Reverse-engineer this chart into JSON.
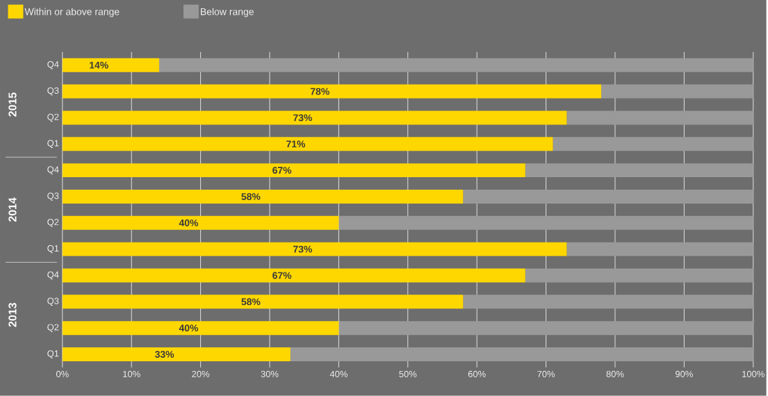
{
  "chart_data": {
    "type": "bar",
    "orientation": "horizontal",
    "stacked": true,
    "categories": [
      "Q4",
      "Q3",
      "Q2",
      "Q1",
      "Q4",
      "Q3",
      "Q2",
      "Q1",
      "Q4",
      "Q3",
      "Q2",
      "Q1"
    ],
    "series": [
      {
        "name": "Within or above range",
        "color": "#ffd700",
        "values": [
          14,
          78,
          73,
          71,
          67,
          58,
          40,
          73,
          67,
          58,
          40,
          33
        ],
        "value_labels": [
          "14%",
          "78%",
          "73%",
          "71%",
          "67%",
          "58%",
          "40%",
          "73%",
          "67%",
          "58%",
          "40%",
          "33%"
        ]
      },
      {
        "name": "Below range",
        "color": "#999999",
        "values": [
          86,
          22,
          27,
          29,
          33,
          42,
          60,
          27,
          33,
          42,
          60,
          67
        ]
      }
    ],
    "xlim": [
      0,
      100
    ],
    "xticks": [
      {
        "value": 0,
        "label": "0%"
      },
      {
        "value": 10,
        "label": "10%"
      },
      {
        "value": 20,
        "label": "20%"
      },
      {
        "value": 30,
        "label": "30%"
      },
      {
        "value": 40,
        "label": "40%"
      },
      {
        "value": 50,
        "label": "50%"
      },
      {
        "value": 60,
        "label": "60%"
      },
      {
        "value": 70,
        "label": "70%"
      },
      {
        "value": 80,
        "label": "80%"
      },
      {
        "value": 90,
        "label": "90%"
      },
      {
        "value": 100,
        "label": "100%"
      }
    ],
    "grid": "x",
    "legend": "top left",
    "annotations": [
      "2015",
      "2014",
      "2013"
    ]
  }
}
